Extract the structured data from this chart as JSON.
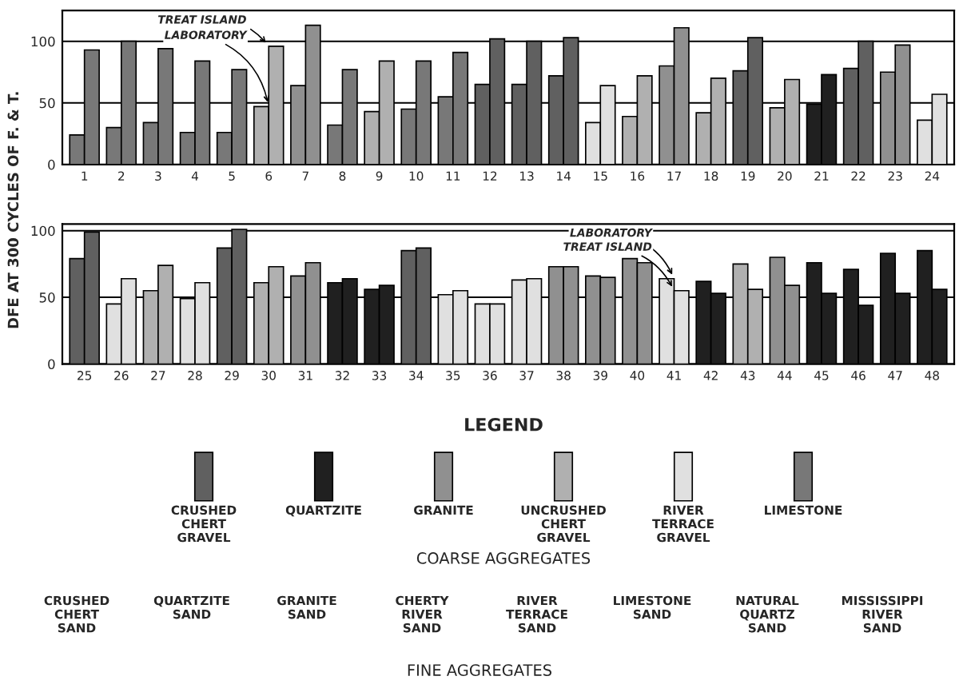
{
  "chart_data": [
    {
      "type": "bar",
      "ylabel": "DFE AT 300 CYCLES OF F. & T.",
      "categories": [
        "1",
        "2",
        "3",
        "4",
        "5",
        "6",
        "7",
        "8",
        "9",
        "10",
        "11",
        "12",
        "13",
        "14",
        "15",
        "16",
        "17",
        "18",
        "19",
        "20",
        "21",
        "22",
        "23",
        "24"
      ],
      "ylim": [
        0,
        125
      ],
      "yticks": [
        0,
        50,
        100
      ],
      "grid": "y",
      "series": [
        {
          "colors": [
            "#787878",
            "#787878",
            "#787878",
            "#787878",
            "#787878",
            "#b0b0b0",
            "#909090",
            "#787878",
            "#b0b0b0",
            "#787878",
            "#787878",
            "#606060",
            "#606060",
            "#606060",
            "#e0e0e0",
            "#b0b0b0",
            "#909090",
            "#b0b0b0",
            "#606060",
            "#b0b0b0",
            "#202020",
            "#606060",
            "#909090",
            "#e0e0e0"
          ],
          "values": [
            24,
            30,
            34,
            26,
            26,
            47,
            64,
            32,
            43,
            45,
            55,
            65,
            65,
            72,
            34,
            39,
            80,
            42,
            76,
            46,
            49,
            78,
            75,
            36
          ]
        },
        {
          "colors": [
            "#787878",
            "#787878",
            "#787878",
            "#787878",
            "#787878",
            "#b0b0b0",
            "#909090",
            "#787878",
            "#b0b0b0",
            "#787878",
            "#787878",
            "#606060",
            "#606060",
            "#606060",
            "#e0e0e0",
            "#b0b0b0",
            "#909090",
            "#b0b0b0",
            "#606060",
            "#b0b0b0",
            "#202020",
            "#606060",
            "#909090",
            "#e0e0e0"
          ],
          "values": [
            93,
            100,
            94,
            84,
            77,
            96,
            113,
            77,
            84,
            84,
            91,
            102,
            100,
            103,
            64,
            72,
            111,
            70,
            103,
            69,
            73,
            100,
            97,
            57
          ]
        }
      ],
      "annotations": [
        {
          "text": "TREAT ISLAND",
          "x": "6",
          "y": 96
        },
        {
          "text": "LABORATORY",
          "x": "6",
          "y": 47
        }
      ]
    },
    {
      "type": "bar",
      "categories": [
        "25",
        "26",
        "27",
        "28",
        "29",
        "30",
        "31",
        "32",
        "33",
        "34",
        "35",
        "36",
        "37",
        "38",
        "39",
        "40",
        "41",
        "42",
        "43",
        "44",
        "45",
        "46",
        "47",
        "48"
      ],
      "ylim": [
        0,
        105
      ],
      "yticks": [
        0,
        50,
        100
      ],
      "grid": "y",
      "series": [
        {
          "colors": [
            "#606060",
            "#e0e0e0",
            "#b0b0b0",
            "#e0e0e0",
            "#606060",
            "#b0b0b0",
            "#909090",
            "#202020",
            "#202020",
            "#606060",
            "#e0e0e0",
            "#e0e0e0",
            "#e0e0e0",
            "#909090",
            "#909090",
            "#909090",
            "#e0e0e0",
            "#202020",
            "#b0b0b0",
            "#909090",
            "#202020",
            "#202020",
            "#202020",
            "#202020"
          ],
          "values": [
            79,
            45,
            55,
            49,
            87,
            61,
            66,
            61,
            56,
            85,
            52,
            45,
            63,
            73,
            66,
            79,
            64,
            62,
            75,
            80,
            76,
            71,
            83,
            85
          ]
        },
        {
          "colors": [
            "#606060",
            "#e0e0e0",
            "#b0b0b0",
            "#e0e0e0",
            "#606060",
            "#b0b0b0",
            "#909090",
            "#202020",
            "#202020",
            "#606060",
            "#e0e0e0",
            "#e0e0e0",
            "#e0e0e0",
            "#909090",
            "#909090",
            "#909090",
            "#e0e0e0",
            "#202020",
            "#b0b0b0",
            "#909090",
            "#202020",
            "#202020",
            "#202020",
            "#202020"
          ],
          "values": [
            99,
            64,
            74,
            61,
            101,
            73,
            76,
            64,
            59,
            87,
            55,
            45,
            64,
            73,
            65,
            76,
            55,
            53,
            56,
            59,
            53,
            44,
            53,
            56
          ]
        }
      ],
      "annotations": [
        {
          "text": "LABORATORY",
          "x": "41",
          "y": 64
        },
        {
          "text": "TREAT ISLAND",
          "x": "41",
          "y": 55
        }
      ]
    },
    {
      "type": "other",
      "title": "LEGEND",
      "xlabel": "COARSE AGGREGATES",
      "colors": [
        "#606060",
        "#202020",
        "#909090",
        "#b0b0b0",
        "#e0e0e0",
        "#787878"
      ],
      "annotations": [
        "CRUSHED\nCHERT\nGRAVEL",
        "QUARTZITE",
        "GRANITE",
        "UNCRUSHED\nCHERT\nGRAVEL",
        "RIVER\nTERRACE\nGRAVEL",
        "LIMESTONE"
      ]
    },
    {
      "type": "other",
      "xlabel": "FINE AGGREGATES",
      "annotations": [
        "CRUSHED\nCHERT\nSAND",
        "QUARTZITE\nSAND",
        "GRANITE\nSAND",
        "CHERTY\nRIVER\nSAND",
        "RIVER\nTERRACE\nSAND",
        "LIMESTONE\nSAND",
        "NATURAL\nQUARTZ\nSAND",
        "MISSISSIPPI\nRIVER\nSAND"
      ]
    }
  ]
}
